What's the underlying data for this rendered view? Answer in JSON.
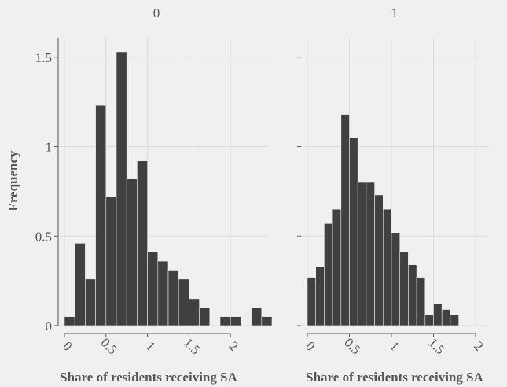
{
  "chart_data": {
    "type": "bar",
    "ylabel": "Frequency",
    "grid": true,
    "facets": [
      {
        "title": "0",
        "xlabel": "Share of residents receiving SA",
        "xlim": [
          0,
          2.6
        ],
        "ylim": [
          0,
          1.6
        ],
        "xticks": [
          "0",
          "0.5",
          "1",
          "1.5",
          "2"
        ],
        "yticks": [
          "0",
          "0.5",
          "1",
          "1.5"
        ],
        "bin_width": 0.125,
        "bins": [
          0,
          0.125,
          0.25,
          0.375,
          0.5,
          0.625,
          0.75,
          0.875,
          1.0,
          1.125,
          1.25,
          1.375,
          1.5,
          1.625,
          1.75,
          1.875,
          2.0,
          2.125,
          2.25,
          2.375,
          2.5
        ],
        "values": [
          0.05,
          0.46,
          0.26,
          1.23,
          0.72,
          1.53,
          0.82,
          0.92,
          0.41,
          0.36,
          0.31,
          0.26,
          0.15,
          0.1,
          0.0,
          0.05,
          0.05,
          0.0,
          0.1,
          0.05,
          0.0
        ]
      },
      {
        "title": "1",
        "xlabel": "Share of residents receiving SA",
        "xlim": [
          0,
          2.1
        ],
        "ylim": [
          0,
          1.6
        ],
        "xticks": [
          "0",
          "0.5",
          "1",
          "1.5",
          "2"
        ],
        "yticks": [],
        "bin_width": 0.1,
        "bins": [
          0,
          0.1,
          0.2,
          0.3,
          0.4,
          0.5,
          0.6,
          0.7,
          0.8,
          0.9,
          1.0,
          1.1,
          1.2,
          1.3,
          1.4,
          1.5,
          1.6,
          1.7,
          1.8,
          1.9
        ],
        "values": [
          0.27,
          0.33,
          0.57,
          0.65,
          1.18,
          1.05,
          0.8,
          0.8,
          0.73,
          0.65,
          0.52,
          0.41,
          0.34,
          0.27,
          0.06,
          0.12,
          0.09,
          0.06,
          0.0,
          0.0
        ]
      }
    ]
  }
}
